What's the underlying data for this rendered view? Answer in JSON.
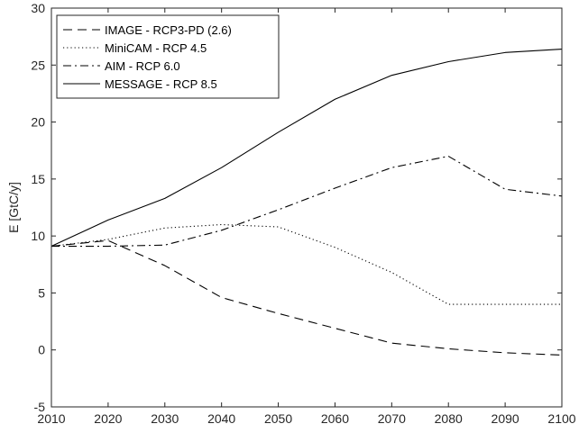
{
  "chart_data": {
    "type": "line",
    "title": "",
    "xlabel": "",
    "ylabel": "E [GtC/y]",
    "xlim": [
      2010,
      2100
    ],
    "ylim": [
      -5,
      30
    ],
    "xticks": [
      2010,
      2020,
      2030,
      2040,
      2050,
      2060,
      2070,
      2080,
      2090,
      2100
    ],
    "yticks": [
      -5,
      0,
      5,
      10,
      15,
      20,
      25,
      30
    ],
    "grid": false,
    "legend_position": "top-left",
    "x": [
      2010,
      2020,
      2030,
      2040,
      2050,
      2060,
      2070,
      2080,
      2090,
      2100
    ],
    "series": [
      {
        "name": "IMAGE - RCP3-PD (2.6)",
        "style": "dashed",
        "color": "#000000",
        "values": [
          9.1,
          9.6,
          7.4,
          4.6,
          3.2,
          1.9,
          0.6,
          0.1,
          -0.25,
          -0.45
        ]
      },
      {
        "name": "MiniCAM - RCP 4.5",
        "style": "dotted",
        "color": "#000000",
        "values": [
          9.1,
          9.7,
          10.7,
          11.0,
          10.8,
          9.0,
          6.8,
          4.0,
          4.0,
          4.0
        ]
      },
      {
        "name": "AIM - RCP 6.0",
        "style": "dashdot",
        "color": "#000000",
        "values": [
          9.1,
          9.1,
          9.2,
          10.5,
          12.3,
          14.2,
          16.0,
          17.0,
          14.1,
          13.5
        ]
      },
      {
        "name": "MESSAGE - RCP 8.5",
        "style": "solid",
        "color": "#000000",
        "values": [
          9.1,
          11.4,
          13.3,
          16.0,
          19.1,
          22.0,
          24.1,
          25.3,
          26.1,
          26.4
        ]
      }
    ]
  }
}
